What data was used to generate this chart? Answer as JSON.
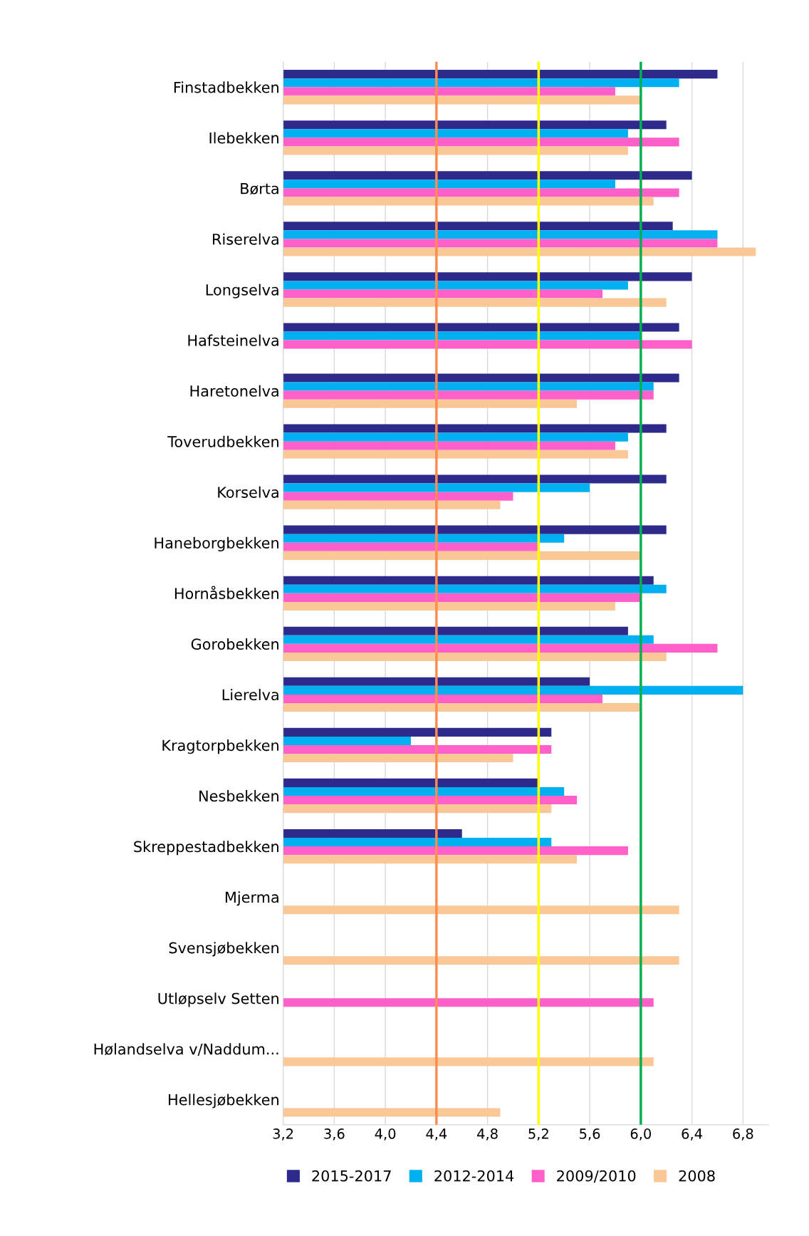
{
  "chart_data": {
    "type": "bar",
    "orientation": "horizontal",
    "categories": [
      "Finstadbekken",
      "Ilebekken",
      "Børta",
      "Riserelva",
      "Longselva",
      "Hafsteinelva",
      "Haretonelva",
      "Toverudbekken",
      "Korselva",
      "Haneborgbekken",
      "Hornåsbekken",
      "Gorobekken",
      "Lierelva",
      "Kragtorpbekken",
      "Nesbekken",
      "Skreppestadbekken",
      "Mjerma",
      "Svensjøbekken",
      "Utløpselv Setten",
      "Hølandselva v/Naddum...",
      "Hellesjøbekken"
    ],
    "series": [
      {
        "name": "2015-2017",
        "color": "#2e2a8c",
        "values": [
          6.6,
          6.2,
          6.4,
          6.25,
          6.4,
          6.3,
          6.3,
          6.2,
          6.2,
          6.2,
          6.1,
          5.9,
          5.6,
          5.3,
          5.2,
          4.6,
          null,
          null,
          null,
          null,
          null
        ]
      },
      {
        "name": "2012-2014",
        "color": "#00b0f0",
        "values": [
          6.3,
          5.9,
          5.8,
          6.6,
          5.9,
          6.0,
          6.1,
          5.9,
          5.6,
          5.4,
          6.2,
          6.1,
          6.8,
          4.2,
          5.4,
          5.3,
          null,
          null,
          null,
          null,
          null
        ]
      },
      {
        "name": "2009/2010",
        "color": "#ff5fc8",
        "values": [
          5.8,
          6.3,
          6.3,
          6.6,
          5.7,
          6.4,
          6.1,
          5.8,
          5.0,
          5.2,
          6.0,
          6.6,
          5.7,
          5.3,
          5.5,
          5.9,
          null,
          null,
          6.1,
          null,
          null
        ]
      },
      {
        "name": "2008",
        "color": "#fac896",
        "values": [
          6.0,
          5.9,
          6.1,
          6.9,
          6.2,
          null,
          5.5,
          5.9,
          4.9,
          6.0,
          5.8,
          6.2,
          6.0,
          5.0,
          5.3,
          5.5,
          6.3,
          6.3,
          null,
          6.1,
          4.9
        ]
      }
    ],
    "xlim": [
      3.2,
      7.0
    ],
    "xticks": [
      {
        "value": 3.2,
        "label": "3,2"
      },
      {
        "value": 3.6,
        "label": "3,6"
      },
      {
        "value": 4.0,
        "label": "4,0"
      },
      {
        "value": 4.4,
        "label": "4,4"
      },
      {
        "value": 4.8,
        "label": "4,8"
      },
      {
        "value": 5.2,
        "label": "5,2"
      },
      {
        "value": 5.6,
        "label": "5,6"
      },
      {
        "value": 6.0,
        "label": "6,0"
      },
      {
        "value": 6.4,
        "label": "6,4"
      },
      {
        "value": 6.8,
        "label": "6,8"
      }
    ],
    "ref_lines": [
      {
        "axis": "x",
        "value": 4.4,
        "color": "#ff8c50"
      },
      {
        "axis": "x",
        "value": 5.2,
        "color": "#ffff00"
      },
      {
        "axis": "x",
        "value": 6.0,
        "color": "#00b050"
      }
    ],
    "grid": "x",
    "legend": "bottom"
  }
}
